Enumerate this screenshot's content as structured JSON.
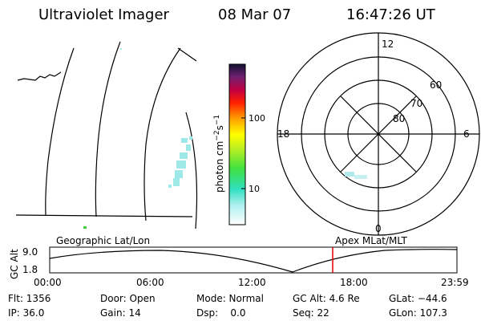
{
  "header": {
    "title": "Ultraviolet Imager",
    "date": "08 Mar 07",
    "time": "16:47:26 UT"
  },
  "colorbar": {
    "label": [
      "photon cm",
      "−2",
      "s",
      "−1"
    ],
    "ticks": [
      "100",
      "10"
    ]
  },
  "polar": {
    "mlt": [
      "12",
      "18",
      "6",
      "0"
    ],
    "mlat": [
      "60",
      "70",
      "80"
    ]
  },
  "timeline": {
    "left_label": "Geographic Lat/Lon",
    "right_label": "Apex MLat/MLT",
    "y_label": "GC Alt",
    "y_ticks": [
      "9.0",
      "1.8"
    ],
    "x_ticks": [
      "00:00",
      "06:00",
      "12:00",
      "18:00",
      "23:59"
    ]
  },
  "info": [
    [
      "Flt: 1356",
      "Door: Open",
      "Mode: Normal",
      "GC Alt: 4.6 Re",
      "GLat: −44.6"
    ],
    [
      "IP: 36.0",
      "Gain: 14",
      "Dsp:    0.0",
      "Seq: 22",
      "GLon: 107.3"
    ]
  ]
}
